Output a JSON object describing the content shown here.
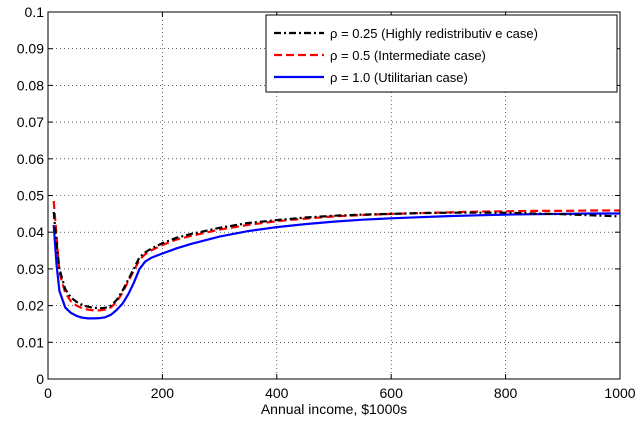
{
  "chart_data": {
    "type": "line",
    "title": "",
    "xlabel": "Annual income, $1000s",
    "ylabel": "",
    "xlim": [
      0,
      1000
    ],
    "ylim": [
      0,
      0.1
    ],
    "grid": true,
    "legend_position": "top-right",
    "x_ticks": [
      {
        "value": 0,
        "label": "0"
      },
      {
        "value": 200,
        "label": "200"
      },
      {
        "value": 400,
        "label": "400"
      },
      {
        "value": 600,
        "label": "600"
      },
      {
        "value": 800,
        "label": "800"
      },
      {
        "value": 1000,
        "label": "1000"
      }
    ],
    "y_ticks": [
      {
        "value": 0,
        "label": "0"
      },
      {
        "value": 0.01,
        "label": "0.01"
      },
      {
        "value": 0.02,
        "label": "0.02"
      },
      {
        "value": 0.03,
        "label": "0.03"
      },
      {
        "value": 0.04,
        "label": "0.04"
      },
      {
        "value": 0.05,
        "label": "0.05"
      },
      {
        "value": 0.06,
        "label": "0.06"
      },
      {
        "value": 0.07,
        "label": "0.07"
      },
      {
        "value": 0.08,
        "label": "0.08"
      },
      {
        "value": 0.09,
        "label": "0.09"
      },
      {
        "value": 0.1,
        "label": "0.1"
      }
    ],
    "series": [
      {
        "name": "ρ = 0.25 (Highly  redistributiv e case)",
        "color": "#000000",
        "line_style": "dash-dot",
        "x": [
          10,
          15,
          20,
          30,
          40,
          50,
          60,
          70,
          80,
          90,
          100,
          110,
          120,
          130,
          140,
          150,
          160,
          170,
          180,
          200,
          225,
          250,
          300,
          350,
          400,
          450,
          500,
          550,
          600,
          650,
          700,
          750,
          800,
          850,
          900,
          950,
          1000
        ],
        "y": [
          0.0455,
          0.037,
          0.03,
          0.0245,
          0.0222,
          0.021,
          0.0202,
          0.0197,
          0.0194,
          0.0193,
          0.0194,
          0.02,
          0.0215,
          0.024,
          0.027,
          0.03,
          0.0332,
          0.0345,
          0.0355,
          0.037,
          0.0385,
          0.0395,
          0.0412,
          0.0425,
          0.0433,
          0.044,
          0.0445,
          0.0448,
          0.045,
          0.0452,
          0.0453,
          0.0453,
          0.0453,
          0.0451,
          0.0449,
          0.0446,
          0.0443
        ]
      },
      {
        "name": "ρ = 0.5  (Intermediate case)",
        "color": "#ff0000",
        "line_style": "dashed",
        "x": [
          10,
          15,
          20,
          30,
          40,
          50,
          60,
          70,
          80,
          90,
          100,
          110,
          120,
          130,
          140,
          150,
          160,
          170,
          180,
          200,
          225,
          250,
          300,
          350,
          400,
          450,
          500,
          550,
          600,
          650,
          700,
          750,
          800,
          850,
          900,
          950,
          1000
        ],
        "y": [
          0.0485,
          0.039,
          0.029,
          0.0235,
          0.0212,
          0.02,
          0.0193,
          0.0189,
          0.0187,
          0.0187,
          0.0189,
          0.0195,
          0.021,
          0.0235,
          0.0265,
          0.0295,
          0.0325,
          0.034,
          0.035,
          0.0365,
          0.038,
          0.039,
          0.0407,
          0.042,
          0.043,
          0.0437,
          0.0443,
          0.0447,
          0.045,
          0.0452,
          0.0454,
          0.0456,
          0.0457,
          0.0458,
          0.0458,
          0.0459,
          0.0459
        ]
      },
      {
        "name": "ρ = 1.0  (Utilitarian case)",
        "color": "#0000ff",
        "line_style": "solid",
        "x": [
          10,
          15,
          20,
          30,
          40,
          50,
          60,
          70,
          80,
          90,
          100,
          110,
          120,
          130,
          140,
          150,
          160,
          170,
          180,
          200,
          225,
          250,
          300,
          350,
          400,
          450,
          500,
          550,
          600,
          650,
          700,
          750,
          800,
          850,
          900,
          950,
          1000
        ],
        "y": [
          0.042,
          0.031,
          0.024,
          0.0195,
          0.018,
          0.0172,
          0.0167,
          0.0165,
          0.0165,
          0.0166,
          0.0168,
          0.0175,
          0.0188,
          0.0205,
          0.023,
          0.0262,
          0.03,
          0.032,
          0.033,
          0.0342,
          0.0356,
          0.0368,
          0.0388,
          0.0403,
          0.0414,
          0.0422,
          0.0429,
          0.0434,
          0.0438,
          0.0441,
          0.0444,
          0.0446,
          0.0448,
          0.0449,
          0.045,
          0.0451,
          0.0451
        ]
      }
    ]
  }
}
